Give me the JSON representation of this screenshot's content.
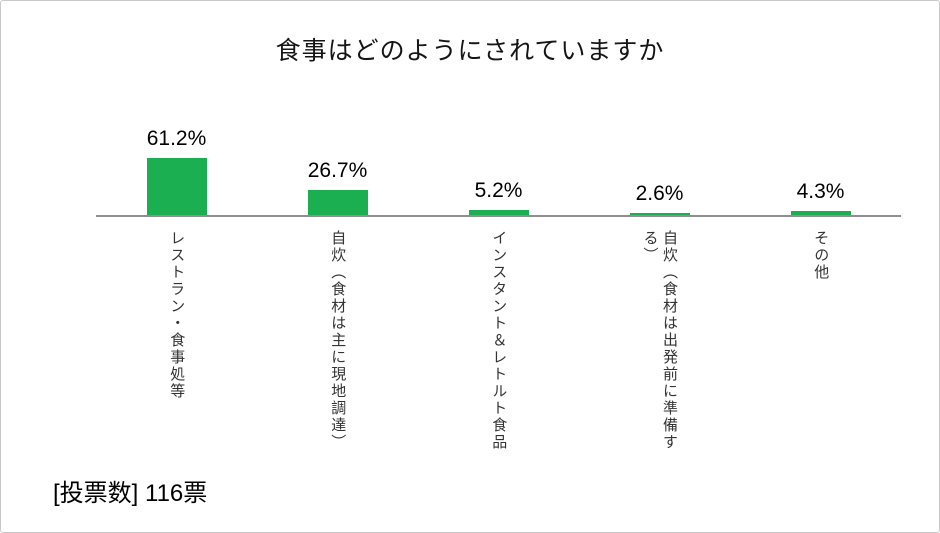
{
  "chart_data": {
    "type": "bar",
    "title": "食事はどのようにされていますか",
    "categories": [
      "レストラン・食事処等",
      "自炊（食材は主に現地調達）",
      "インスタント＆レトルト食品",
      "自炊（食材は出発前に準備する）",
      "その他"
    ],
    "values": [
      61.2,
      26.7,
      5.2,
      2.6,
      4.3
    ],
    "value_labels": [
      "61.2%",
      "26.7%",
      "5.2%",
      "2.6%",
      "4.3%"
    ],
    "xlabel": "",
    "ylabel": "",
    "ylim": [
      0,
      70
    ],
    "grid": false,
    "legend": "none",
    "bar_color": "#1caf52",
    "axis_color": "#8f8f8f"
  },
  "footer": {
    "votes_label": "[投票数] 116票"
  }
}
